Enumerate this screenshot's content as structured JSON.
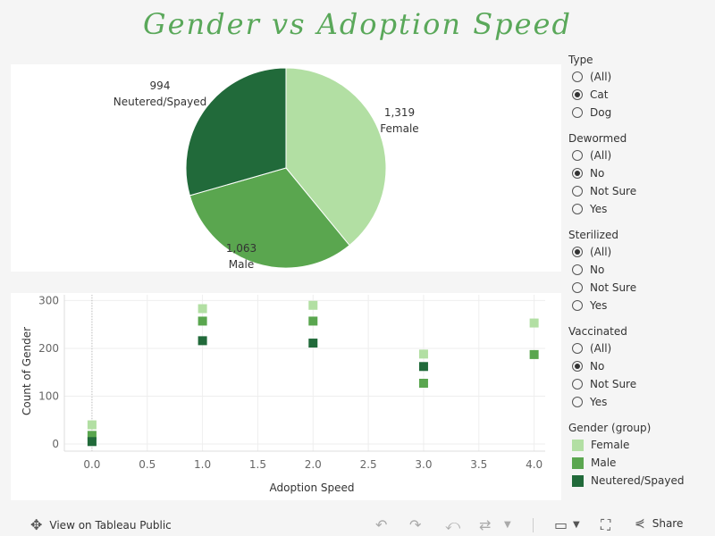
{
  "chart_data": [
    {
      "type": "pie",
      "title": "Gender vs Adoption Speed",
      "slices": [
        {
          "label": "Female",
          "value": 1319,
          "value_text": "1,319",
          "color": "#b2dfa3"
        },
        {
          "label": "Male",
          "value": 1063,
          "value_text": "1,063",
          "color": "#5aa64f"
        },
        {
          "label": "Neutered/Spayed",
          "value": 994,
          "value_text": "994",
          "color": "#216a3a"
        }
      ]
    },
    {
      "type": "scatter",
      "xlabel": "Adoption Speed",
      "ylabel": "Count of Gender",
      "xlim": [
        -0.25,
        4.1
      ],
      "ylim": [
        -15,
        312
      ],
      "x_ticks": [
        0.0,
        0.5,
        1.0,
        1.5,
        2.0,
        2.5,
        3.0,
        3.5,
        4.0
      ],
      "x_tick_labels": [
        "0.0",
        "0.5",
        "1.0",
        "1.5",
        "2.0",
        "2.5",
        "3.0",
        "3.5",
        "4.0"
      ],
      "y_ticks": [
        0,
        100,
        200,
        300
      ],
      "y_tick_labels": [
        "0",
        "100",
        "200",
        "300"
      ],
      "series": [
        {
          "name": "Female",
          "color": "#b2dfa3",
          "x": [
            0,
            1,
            2,
            3,
            4
          ],
          "y": [
            40,
            283,
            290,
            188,
            253
          ]
        },
        {
          "name": "Male",
          "color": "#5aa64f",
          "x": [
            0,
            1,
            2,
            3,
            4
          ],
          "y": [
            18,
            257,
            257,
            127,
            187
          ]
        },
        {
          "name": "Neutered/Spayed",
          "color": "#216a3a",
          "x": [
            0,
            1,
            2,
            3,
            4
          ],
          "y": [
            5,
            216,
            211,
            162,
            null
          ]
        }
      ]
    }
  ],
  "filters": [
    {
      "title": "Type",
      "options": [
        "(All)",
        "Cat",
        "Dog"
      ],
      "selected": 1
    },
    {
      "title": "Dewormed",
      "options": [
        "(All)",
        "No",
        "Not Sure",
        "Yes"
      ],
      "selected": 1
    },
    {
      "title": "Sterilized",
      "options": [
        "(All)",
        "No",
        "Not Sure",
        "Yes"
      ],
      "selected": 0
    },
    {
      "title": "Vaccinated",
      "options": [
        "(All)",
        "No",
        "Not Sure",
        "Yes"
      ],
      "selected": 1
    }
  ],
  "legend": {
    "title": "Gender (group)",
    "items": [
      {
        "label": "Female",
        "color": "#b2dfa3"
      },
      {
        "label": "Male",
        "color": "#5aa64f"
      },
      {
        "label": "Neutered/Spayed",
        "color": "#216a3a"
      }
    ]
  },
  "footer": {
    "view_label": "View on Tableau Public",
    "share_label": "Share"
  }
}
